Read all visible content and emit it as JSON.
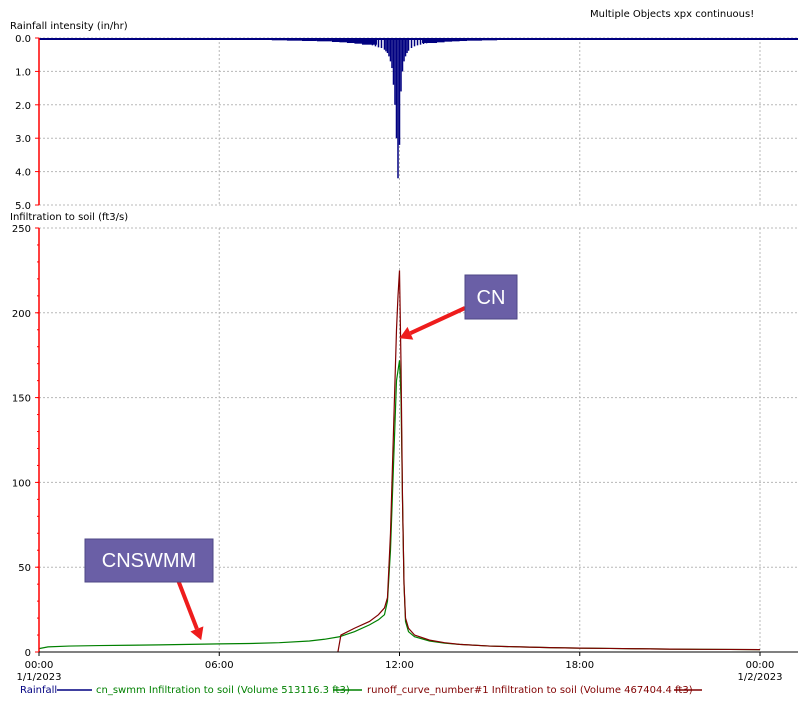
{
  "header": {
    "title": "Multiple Objects xpx continuous!"
  },
  "chart_data": [
    {
      "type": "bar",
      "title": "",
      "ylabel": "Rainfall intensity (in/hr)",
      "ylim": [
        0,
        5
      ],
      "y_inverted": true,
      "y_ticks": [
        "0.0",
        "1.0",
        "2.0",
        "3.0",
        "4.0",
        "5.0"
      ],
      "grid": true,
      "series": [
        {
          "name": "Rainfall",
          "color": "#000080",
          "x_hours": [
            0.5,
            1,
            1.5,
            2,
            2.5,
            3,
            3.5,
            4,
            4.5,
            5,
            5.5,
            6,
            6.5,
            7,
            7.5,
            8,
            8.5,
            9,
            9.5,
            10,
            10.25,
            10.5,
            10.75,
            11,
            11.1,
            11.2,
            11.3,
            11.4,
            11.5,
            11.55,
            11.6,
            11.65,
            11.7,
            11.75,
            11.8,
            11.85,
            11.9,
            11.95,
            12,
            12.05,
            12.1,
            12.15,
            12.2,
            12.25,
            12.3,
            12.4,
            12.5,
            12.6,
            12.7,
            12.8,
            12.9,
            13,
            13.25,
            13.5,
            13.75,
            14,
            14.5,
            15,
            15.5,
            16,
            16.5,
            17,
            17.5,
            18,
            18.5,
            19,
            19.5,
            20,
            20.5,
            21,
            21.5,
            22,
            22.5,
            23,
            23.5
          ],
          "values": [
            0.02,
            0.02,
            0.02,
            0.03,
            0.03,
            0.03,
            0.03,
            0.04,
            0.04,
            0.04,
            0.05,
            0.05,
            0.05,
            0.06,
            0.06,
            0.07,
            0.08,
            0.09,
            0.1,
            0.12,
            0.13,
            0.15,
            0.17,
            0.2,
            0.22,
            0.25,
            0.28,
            0.3,
            0.35,
            0.4,
            0.45,
            0.55,
            0.7,
            0.9,
            1.4,
            2.0,
            3.0,
            4.2,
            3.2,
            1.6,
            1.0,
            0.7,
            0.55,
            0.45,
            0.38,
            0.3,
            0.25,
            0.22,
            0.2,
            0.18,
            0.16,
            0.15,
            0.13,
            0.11,
            0.1,
            0.09,
            0.08,
            0.07,
            0.06,
            0.06,
            0.05,
            0.05,
            0.04,
            0.04,
            0.04,
            0.03,
            0.03,
            0.03,
            0.03,
            0.02,
            0.02,
            0.02,
            0.02,
            0.02,
            0.02
          ]
        }
      ]
    },
    {
      "type": "line",
      "title": "",
      "ylabel": "Infiltration to soil (ft3/s)",
      "ylim": [
        0,
        250
      ],
      "y_ticks": [
        "0",
        "50",
        "100",
        "150",
        "200",
        "250"
      ],
      "xlim_hours": [
        0,
        24
      ],
      "x_ticks": [
        {
          "hours": 0,
          "line1": "00:00",
          "line2": "1/1/2023"
        },
        {
          "hours": 6,
          "line1": "06:00",
          "line2": ""
        },
        {
          "hours": 12,
          "line1": "12:00",
          "line2": ""
        },
        {
          "hours": 18,
          "line1": "18:00",
          "line2": ""
        },
        {
          "hours": 24,
          "line1": "00:00",
          "line2": "1/2/2023"
        }
      ],
      "grid": true,
      "series": [
        {
          "name": "cn_swmm Infiltration to soil (Volume 513116.3 ft3)",
          "color": "#008000",
          "x_hours": [
            0,
            0.3,
            1,
            2,
            3,
            4,
            5,
            6,
            7,
            8,
            9,
            9.5,
            10,
            10.5,
            11,
            11.3,
            11.5,
            11.6,
            11.7,
            11.8,
            11.9,
            12,
            12.05,
            12.1,
            12.15,
            12.2,
            12.3,
            12.5,
            13,
            13.5,
            14,
            15,
            16,
            17,
            18,
            19,
            20,
            21,
            22,
            23,
            24
          ],
          "values": [
            2,
            3,
            3.5,
            3.8,
            4,
            4.2,
            4.5,
            4.8,
            5,
            5.5,
            6.5,
            7.5,
            9,
            12,
            16,
            19,
            22,
            30,
            60,
            110,
            160,
            172,
            150,
            90,
            40,
            18,
            12,
            9,
            6.5,
            5.2,
            4.5,
            3.5,
            3,
            2.6,
            2.3,
            2.1,
            1.9,
            1.7,
            1.6,
            1.5,
            1.4
          ]
        },
        {
          "name": "runoff_curve_number#1 Infiltration to soil (Volume 467404.4 ft3)",
          "color": "#800000",
          "x_hours": [
            9.95,
            10.05,
            10.5,
            11,
            11.3,
            11.5,
            11.6,
            11.7,
            11.8,
            11.9,
            11.95,
            12,
            12.05,
            12.1,
            12.15,
            12.2,
            12.3,
            12.5,
            13,
            13.5,
            14,
            15,
            16,
            17,
            18,
            19,
            20,
            21,
            22,
            23,
            24
          ],
          "values": [
            0,
            10,
            14,
            18,
            22,
            26,
            32,
            70,
            130,
            190,
            210,
            225,
            170,
            90,
            40,
            20,
            14,
            10,
            7,
            5.5,
            4.5,
            3.5,
            3,
            2.6,
            2.3,
            2.1,
            1.9,
            1.7,
            1.6,
            1.5,
            1.4
          ]
        }
      ],
      "annotations": [
        {
          "text": "CN",
          "target_hours": 12,
          "target_value": 185
        },
        {
          "text": "CNSWMM",
          "target_hours": 5.4,
          "target_value": 7
        }
      ]
    }
  ],
  "legend": [
    {
      "label": "Rainfall",
      "color": "#000080"
    },
    {
      "label": "cn_swmm Infiltration to soil (Volume 513116.3 ft3)",
      "color": "#008000"
    },
    {
      "label": "runoff_curve_number#1 Infiltration to soil (Volume 467404.4 ft3)",
      "color": "#800000"
    }
  ]
}
